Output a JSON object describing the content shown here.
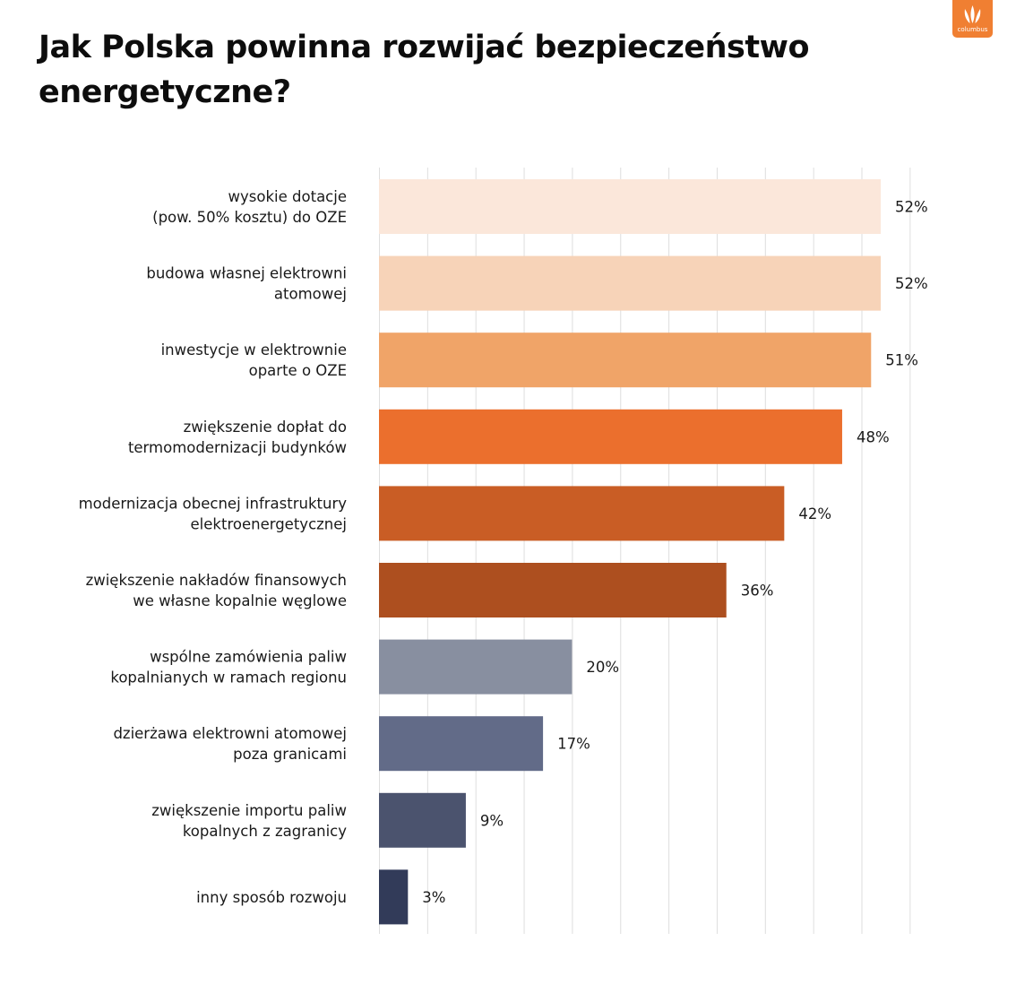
{
  "title": "Jak Polska powinna rozwijać bezpieczeństwo energetyczne?",
  "logo": {
    "text": "columbus",
    "color": "#f07f32"
  },
  "chart_data": {
    "type": "bar",
    "orientation": "horizontal",
    "title": "Jak Polska powinna rozwijać bezpieczeństwo energetyczne?",
    "xlabel": "",
    "ylabel": "",
    "xlim": [
      0,
      55
    ],
    "grid": true,
    "categories": [
      [
        "wysokie dotacje",
        "(pow. 50% kosztu) do OZE"
      ],
      [
        "budowa własnej elektrowni",
        "atomowej"
      ],
      [
        "inwestycje w elektrownie",
        "oparte  o OZE"
      ],
      [
        "zwiększenie dopłat do",
        "termomodernizacji budynków"
      ],
      [
        "modernizacja obecnej infrastruktury",
        "elektroenergetycznej"
      ],
      [
        "zwiększenie nakładów finansowych",
        "we własne kopalnie węglowe"
      ],
      [
        "wspólne zamówienia paliw",
        "kopalnianych w ramach regionu"
      ],
      [
        "dzierżawa elektrowni atomowej",
        "poza granicami"
      ],
      [
        "zwiększenie importu paliw",
        "kopalnych z zagranicy"
      ],
      [
        "inny sposób rozwoju"
      ]
    ],
    "values": [
      52,
      52,
      51,
      48,
      42,
      36,
      20,
      17,
      9,
      3
    ],
    "value_labels": [
      "52%",
      "52%",
      "51%",
      "48%",
      "42%",
      "36%",
      "20%",
      "17%",
      "9%",
      "3%"
    ],
    "colors": [
      "#fbe7da",
      "#f7d3b8",
      "#f0a468",
      "#eb6f2d",
      "#c95d25",
      "#ad4f1f",
      "#888fa0",
      "#626b88",
      "#4b536e",
      "#323b59"
    ]
  }
}
